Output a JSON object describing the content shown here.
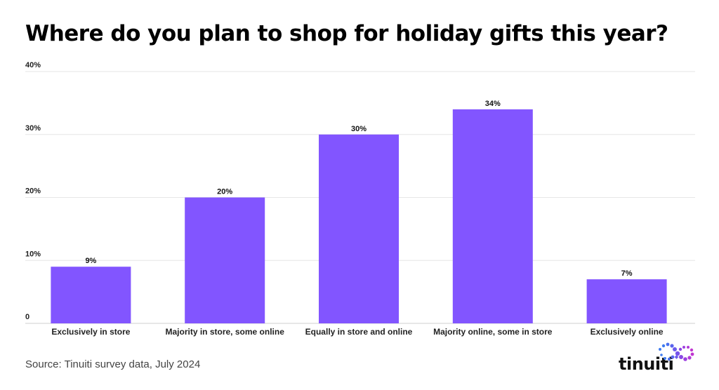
{
  "title": "Where do you plan to shop for holiday gifts this year?",
  "source": "Source: Tinuiti survey data, July 2024",
  "logo": {
    "text": "tinuiti",
    "icon": "tinuiti-infinity-dots-icon"
  },
  "colors": {
    "bar": "#8255ff",
    "grid": "#e6e6e6",
    "text": "#000000"
  },
  "chart_data": {
    "type": "bar",
    "title": "Where do you plan to shop for holiday gifts this year?",
    "categories": [
      "Exclusively in store",
      "Majority in store, some online",
      "Equally in store and online",
      "Majority online, some in store",
      "Exclusively online"
    ],
    "values": [
      9,
      20,
      30,
      34,
      7
    ],
    "data_labels": [
      "9%",
      "20%",
      "30%",
      "34%",
      "7%"
    ],
    "yticks": [
      0,
      10,
      20,
      30,
      40
    ],
    "ytick_labels": [
      "0",
      "10%",
      "20%",
      "30%",
      "40%"
    ],
    "ylim": [
      0,
      40
    ],
    "xlabel": "",
    "ylabel": "",
    "grid": true,
    "legend": "none"
  }
}
